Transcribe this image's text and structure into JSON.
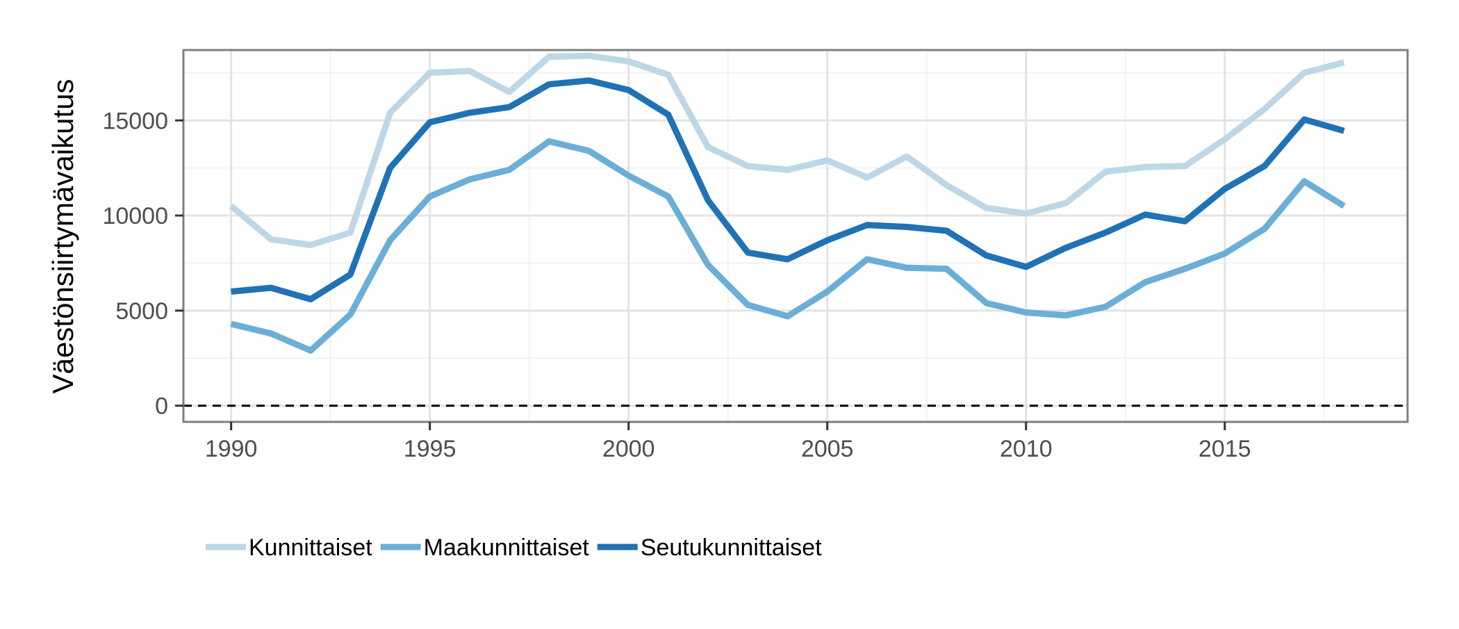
{
  "chart_data": {
    "type": "line",
    "title": "",
    "xlabel": "",
    "ylabel": "Väestönsiirtymävaikutus",
    "x": [
      1990,
      1991,
      1992,
      1993,
      1994,
      1995,
      1996,
      1997,
      1998,
      1999,
      2000,
      2001,
      2002,
      2003,
      2004,
      2005,
      2006,
      2007,
      2008,
      2009,
      2010,
      2011,
      2012,
      2013,
      2014,
      2015,
      2016,
      2017,
      2018
    ],
    "xlim": [
      1988.8,
      2019.6
    ],
    "ylim": [
      -850,
      18700
    ],
    "x_ticks": [
      1990,
      1995,
      2000,
      2005,
      2010,
      2015
    ],
    "y_ticks": [
      0,
      5000,
      10000,
      15000
    ],
    "grid": true,
    "reference_line": {
      "y": 0,
      "style": "dashed"
    },
    "legend_position": "bottom-left",
    "series": [
      {
        "name": "Kunnittaiset",
        "color": "#bdd7e7",
        "values": [
          10500,
          8750,
          8450,
          9100,
          15400,
          17500,
          17600,
          16500,
          18350,
          18400,
          18100,
          17400,
          13600,
          12600,
          12400,
          12900,
          12000,
          13100,
          11600,
          10400,
          10100,
          10650,
          12300,
          12550,
          12600,
          14000,
          15600,
          17500,
          18050
        ]
      },
      {
        "name": "Maakunnittaiset",
        "color": "#6baed6",
        "values": [
          4300,
          3800,
          2900,
          4800,
          8700,
          11000,
          11900,
          12400,
          13900,
          13400,
          12100,
          11000,
          7400,
          5300,
          4700,
          6000,
          7700,
          7250,
          7200,
          5400,
          4900,
          4750,
          5200,
          6500,
          7200,
          8000,
          9300,
          11800,
          10500
        ]
      },
      {
        "name": "Seutukunnittaiset",
        "color": "#2171b5",
        "values": [
          6000,
          6200,
          5600,
          6900,
          12500,
          14900,
          15400,
          15700,
          16900,
          17100,
          16600,
          15300,
          10800,
          8050,
          7700,
          8700,
          9500,
          9400,
          9200,
          7900,
          7300,
          8300,
          9100,
          10050,
          9700,
          11400,
          12600,
          15050,
          14450
        ]
      }
    ]
  }
}
